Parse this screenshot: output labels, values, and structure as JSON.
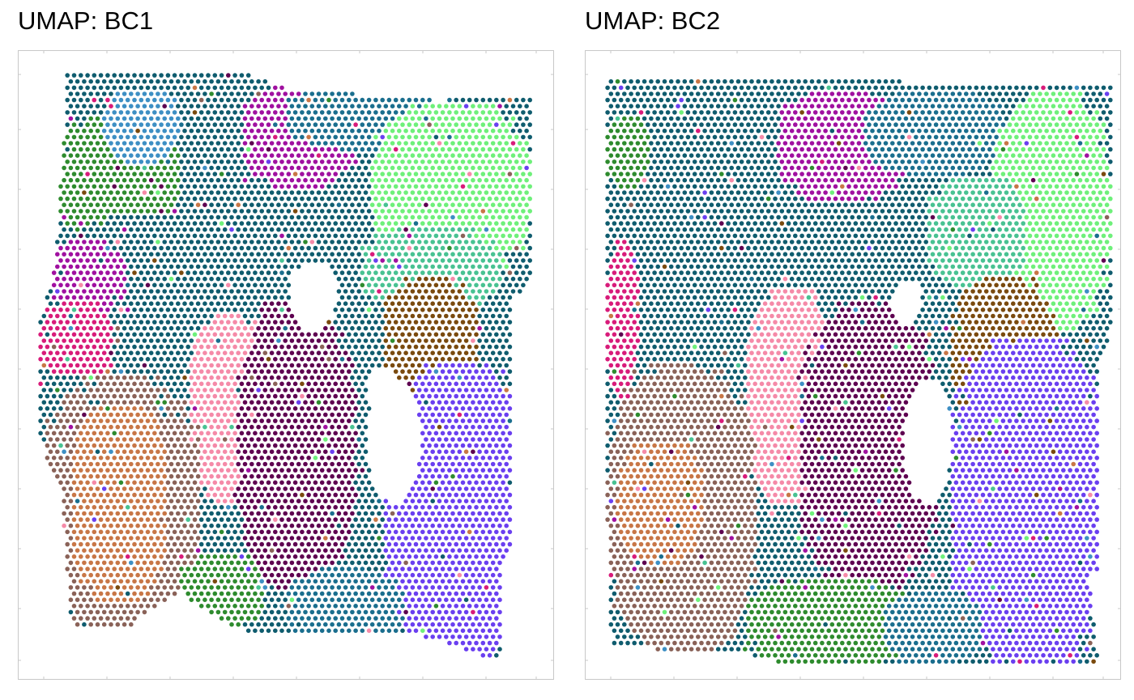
{
  "chart_data": [
    {
      "type": "scatter",
      "title": "UMAP: BC1",
      "xlabel": "",
      "ylabel": "",
      "grid": false,
      "legend": "none",
      "cluster_colors": {
        "c01": "#2e8b2e",
        "c02": "#3d8fc4",
        "c03": "#0f5c6e",
        "c04": "#1a6e8e",
        "c05": "#a010a0",
        "c06": "#d81b7a",
        "c07": "#7a4a0e",
        "c08": "#6ef07a",
        "c09": "#48c292",
        "c10": "#6a3ff0",
        "c11": "#5e0050",
        "c12": "#f58aa8",
        "c13": "#8a6258",
        "c14": "#c87646"
      },
      "regions": [
        {
          "cluster": "c01",
          "x_range": [
            0.06,
            0.3
          ],
          "y_range": [
            0.1,
            0.3
          ]
        },
        {
          "cluster": "c02",
          "x_range": [
            0.16,
            0.3
          ],
          "y_range": [
            0.06,
            0.18
          ]
        },
        {
          "cluster": "c05",
          "x_range": [
            0.42,
            0.63
          ],
          "y_range": [
            0.05,
            0.22
          ]
        },
        {
          "cluster": "c04",
          "x_range": [
            0.5,
            0.82
          ],
          "y_range": [
            0.05,
            0.16
          ]
        },
        {
          "cluster": "c08",
          "x_range": [
            0.66,
            0.96
          ],
          "y_range": [
            0.08,
            0.36
          ]
        },
        {
          "cluster": "c09",
          "x_range": [
            0.64,
            0.9
          ],
          "y_range": [
            0.28,
            0.42
          ]
        },
        {
          "cluster": "c03",
          "x_range": [
            0.08,
            0.5
          ],
          "y_range": [
            0.26,
            0.44
          ]
        },
        {
          "cluster": "c05",
          "x_range": [
            0.06,
            0.2
          ],
          "y_range": [
            0.3,
            0.42
          ]
        },
        {
          "cluster": "c06",
          "x_range": [
            0.04,
            0.18
          ],
          "y_range": [
            0.4,
            0.52
          ]
        },
        {
          "cluster": "c12",
          "x_range": [
            0.32,
            0.47
          ],
          "y_range": [
            0.42,
            0.72
          ]
        },
        {
          "cluster": "c11",
          "x_range": [
            0.41,
            0.63
          ],
          "y_range": [
            0.4,
            0.86
          ]
        },
        {
          "cluster": "c07",
          "x_range": [
            0.68,
            0.86
          ],
          "y_range": [
            0.36,
            0.58
          ]
        },
        {
          "cluster": "c10",
          "x_range": [
            0.68,
            0.96
          ],
          "y_range": [
            0.5,
            0.97
          ]
        },
        {
          "cluster": "c13",
          "x_range": [
            0.04,
            0.34
          ],
          "y_range": [
            0.52,
            0.92
          ]
        },
        {
          "cluster": "c14",
          "x_range": [
            0.1,
            0.28
          ],
          "y_range": [
            0.56,
            0.88
          ]
        },
        {
          "cluster": "c01",
          "x_range": [
            0.3,
            0.46
          ],
          "y_range": [
            0.8,
            0.92
          ]
        },
        {
          "cluster": "c04",
          "x_range": [
            0.5,
            0.72
          ],
          "y_range": [
            0.82,
            0.95
          ]
        }
      ]
    },
    {
      "type": "scatter",
      "title": "UMAP: BC2",
      "xlabel": "",
      "ylabel": "",
      "grid": false,
      "legend": "none",
      "cluster_colors": {
        "c01": "#2e8b2e",
        "c02": "#3d8fc4",
        "c03": "#0f5c6e",
        "c04": "#1a6e8e",
        "c05": "#a010a0",
        "c06": "#d81b7a",
        "c07": "#7a4a0e",
        "c08": "#6ef07a",
        "c09": "#48c292",
        "c10": "#6a3ff0",
        "c11": "#5e0050",
        "c12": "#f58aa8",
        "c13": "#8a6258",
        "c14": "#c87646"
      },
      "regions": [
        {
          "cluster": "c03",
          "x_range": [
            0.04,
            0.46
          ],
          "y_range": [
            0.04,
            0.5
          ]
        },
        {
          "cluster": "c01",
          "x_range": [
            0.04,
            0.12
          ],
          "y_range": [
            0.1,
            0.22
          ]
        },
        {
          "cluster": "c05",
          "x_range": [
            0.36,
            0.6
          ],
          "y_range": [
            0.06,
            0.24
          ]
        },
        {
          "cluster": "c04",
          "x_range": [
            0.52,
            0.78
          ],
          "y_range": [
            0.06,
            0.2
          ]
        },
        {
          "cluster": "c08",
          "x_range": [
            0.76,
            0.98
          ],
          "y_range": [
            0.06,
            0.45
          ]
        },
        {
          "cluster": "c09",
          "x_range": [
            0.64,
            0.82
          ],
          "y_range": [
            0.2,
            0.38
          ]
        },
        {
          "cluster": "c06",
          "x_range": [
            0.04,
            0.1
          ],
          "y_range": [
            0.3,
            0.56
          ]
        },
        {
          "cluster": "c12",
          "x_range": [
            0.3,
            0.46
          ],
          "y_range": [
            0.38,
            0.72
          ]
        },
        {
          "cluster": "c11",
          "x_range": [
            0.4,
            0.66
          ],
          "y_range": [
            0.4,
            0.86
          ]
        },
        {
          "cluster": "c07",
          "x_range": [
            0.68,
            0.88
          ],
          "y_range": [
            0.36,
            0.62
          ]
        },
        {
          "cluster": "c10",
          "x_range": [
            0.68,
            0.98
          ],
          "y_range": [
            0.46,
            0.98
          ]
        },
        {
          "cluster": "c13",
          "x_range": [
            0.04,
            0.32
          ],
          "y_range": [
            0.5,
            0.96
          ]
        },
        {
          "cluster": "c14",
          "x_range": [
            0.06,
            0.22
          ],
          "y_range": [
            0.62,
            0.82
          ]
        },
        {
          "cluster": "c01",
          "x_range": [
            0.3,
            0.62
          ],
          "y_range": [
            0.84,
            0.98
          ]
        },
        {
          "cluster": "c04",
          "x_range": [
            0.56,
            0.74
          ],
          "y_range": [
            0.86,
            0.98
          ]
        }
      ]
    }
  ]
}
